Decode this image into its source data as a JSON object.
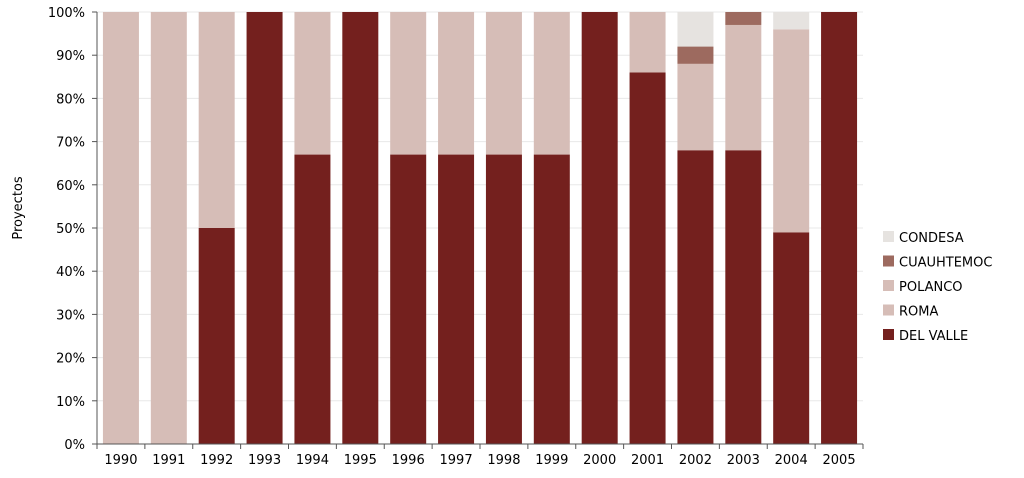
{
  "chart_data": {
    "type": "bar",
    "stacked": true,
    "percent": true,
    "title": "",
    "xlabel": "",
    "ylabel": "Proyectos",
    "ylim": [
      0,
      100
    ],
    "yticks": [
      "0%",
      "10%",
      "20%",
      "30%",
      "40%",
      "50%",
      "60%",
      "70%",
      "80%",
      "90%",
      "100%"
    ],
    "grid": true,
    "legend_position": "right",
    "categories": [
      "1990",
      "1991",
      "1992",
      "1993",
      "1994",
      "1995",
      "1996",
      "1997",
      "1998",
      "1999",
      "2000",
      "2001",
      "2002",
      "2003",
      "2004",
      "2005"
    ],
    "series": [
      {
        "name": "DEL VALLE",
        "color": "#74201e",
        "values": [
          0,
          0,
          50,
          100,
          67,
          100,
          67,
          67,
          67,
          67,
          100,
          86,
          68,
          68,
          49,
          100
        ]
      },
      {
        "name": "ROMA",
        "color": "#d6bdb7",
        "values": [
          100,
          100,
          50,
          0,
          33,
          0,
          33,
          33,
          33,
          33,
          0,
          14,
          0,
          0,
          0,
          0
        ]
      },
      {
        "name": "POLANCO",
        "color": "#d6bdb7",
        "values": [
          0,
          0,
          0,
          0,
          0,
          0,
          0,
          0,
          0,
          0,
          0,
          0,
          20,
          29,
          47,
          0
        ]
      },
      {
        "name": "CUAUHTEMOC",
        "color": "#9d6a5f",
        "values": [
          0,
          0,
          0,
          0,
          0,
          0,
          0,
          0,
          0,
          0,
          0,
          0,
          4,
          3,
          0,
          0
        ]
      },
      {
        "name": "CONDESA",
        "color": "#e6e3e0",
        "values": [
          0,
          0,
          0,
          0,
          0,
          0,
          0,
          0,
          0,
          0,
          0,
          0,
          8,
          0,
          4,
          0
        ]
      }
    ],
    "legend_order": [
      "CONDESA",
      "CUAUHTEMOC",
      "POLANCO",
      "ROMA",
      "DEL VALLE"
    ]
  }
}
